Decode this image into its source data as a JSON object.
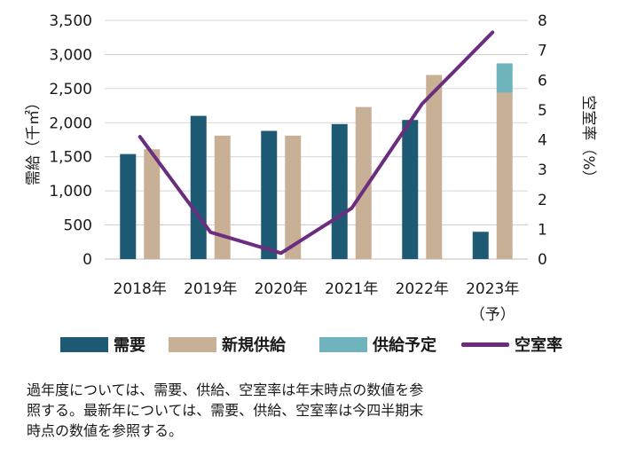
{
  "chart_data": {
    "type": "bar",
    "categories": [
      "2018年",
      "2019年",
      "2020年",
      "2021年",
      "2022年",
      "2023年"
    ],
    "category_sublabels": [
      "",
      "",
      "",
      "",
      "",
      "（予）"
    ],
    "ylabel": "需給（千㎡）",
    "y2label": "空室率（%）",
    "ylim": [
      0,
      3500
    ],
    "yticks": [
      "0",
      "500",
      "1,000",
      "1,500",
      "2,000",
      "2,500",
      "3,000",
      "3,500"
    ],
    "ytick_values": [
      0,
      500,
      1000,
      1500,
      2000,
      2500,
      3000,
      3500
    ],
    "y2lim": [
      0,
      8
    ],
    "y2ticks": [
      "0",
      "1",
      "2",
      "3",
      "4",
      "5",
      "6",
      "7",
      "8"
    ],
    "y2tick_values": [
      0,
      1,
      2,
      3,
      4,
      5,
      6,
      7,
      8
    ],
    "grid": true,
    "series": [
      {
        "name": "需要",
        "type": "bar",
        "values": [
          1540,
          2100,
          1880,
          1980,
          2040,
          400
        ]
      },
      {
        "name": "新規供給",
        "type": "bar",
        "values": [
          1610,
          1810,
          1810,
          2230,
          2700,
          2440
        ]
      },
      {
        "name": "供給予定",
        "type": "bar-stacked",
        "values": [
          0,
          0,
          0,
          0,
          0,
          430
        ]
      },
      {
        "name": "空室率",
        "type": "line",
        "axis": "right",
        "values": [
          4.1,
          0.9,
          0.2,
          1.7,
          5.2,
          7.6
        ]
      }
    ],
    "legend_position": "bottom"
  },
  "colors": {
    "demand": "#1e5a73",
    "supply": "#c8b096",
    "planned": "#6fb3bd",
    "vacancy": "#6b2d7e",
    "grid": "#c9c9c9"
  },
  "legend": {
    "demand_label": "需要",
    "supply_label": "新規供給",
    "planned_label": "供給予定",
    "vacancy_label": "空室率"
  },
  "note": "過年度については、需要、供給、空室率は年末時点の数値を参\n照する。最新年については、需要、供給、空室率は今四半期末\n時点の数値を参照する。"
}
